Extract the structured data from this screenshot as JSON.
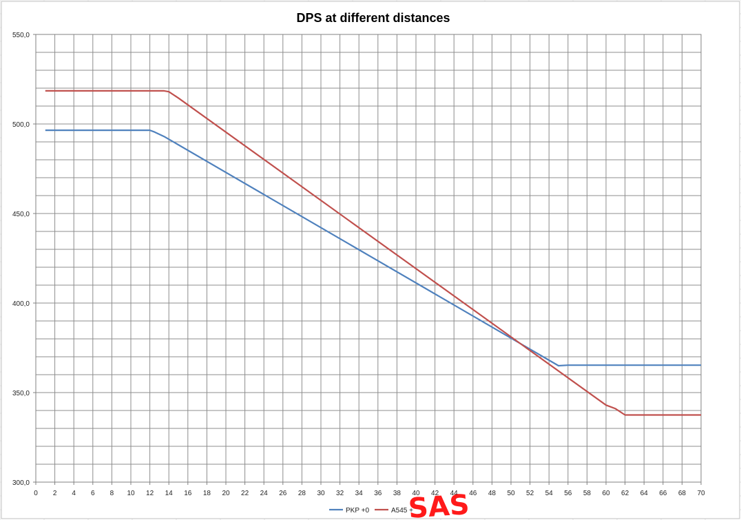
{
  "chart_data": {
    "type": "line",
    "title": "DPS at different distances",
    "xlabel": "",
    "ylabel": "",
    "xlim": [
      0,
      70
    ],
    "ylim": [
      300,
      550
    ],
    "x_ticks": [
      "0",
      "2",
      "4",
      "6",
      "8",
      "10",
      "12",
      "14",
      "16",
      "18",
      "20",
      "22",
      "24",
      "26",
      "28",
      "30",
      "32",
      "34",
      "36",
      "38",
      "40",
      "42",
      "44",
      "46",
      "48",
      "50",
      "52",
      "54",
      "56",
      "58",
      "60",
      "62",
      "64",
      "66",
      "68",
      "70"
    ],
    "y_ticks": [
      "300,0",
      "350,0",
      "400,0",
      "450,0",
      "500,0",
      "550,0"
    ],
    "grid": true,
    "legend_position": "bottom",
    "series": [
      {
        "name": "PKP +0",
        "color": "#4f81bd",
        "points": [
          [
            1,
            496.5
          ],
          [
            11.5,
            496.5
          ],
          [
            12,
            496.5
          ],
          [
            12.5,
            495.5
          ],
          [
            13.5,
            493
          ],
          [
            55,
            365
          ],
          [
            56,
            365.3
          ],
          [
            70,
            365.3
          ]
        ]
      },
      {
        "name": "A545 +",
        "color": "#c0504d",
        "points": [
          [
            1,
            518.5
          ],
          [
            13.5,
            518.5
          ],
          [
            14,
            518
          ],
          [
            15,
            514.5
          ],
          [
            60,
            343
          ],
          [
            61,
            341
          ],
          [
            62,
            337.5
          ],
          [
            63,
            337.5
          ],
          [
            70,
            337.5
          ]
        ]
      }
    ],
    "watermark": "SAS"
  }
}
